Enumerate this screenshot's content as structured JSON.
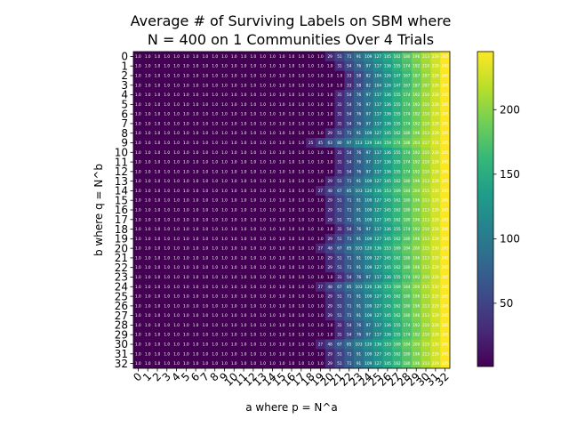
{
  "chart_data": {
    "type": "heatmap",
    "title_line1": "Average # of Surviving Labels on SBM where",
    "title_line2": "N = 400 on 1 Communities Over 4 Trials",
    "xlabel": "a where p = N^a",
    "ylabel": "b where q = N^b",
    "x_ticks": [
      "0",
      "1",
      "2",
      "3",
      "4",
      "5",
      "6",
      "7",
      "8",
      "9",
      "10",
      "11",
      "12",
      "13",
      "14",
      "15",
      "16",
      "17",
      "18",
      "19",
      "20",
      "21",
      "22",
      "23",
      "24",
      "25",
      "26",
      "27",
      "28",
      "29",
      "30",
      "31",
      "32"
    ],
    "y_ticks": [
      "0",
      "1",
      "2",
      "3",
      "4",
      "5",
      "6",
      "7",
      "8",
      "9",
      "10",
      "11",
      "12",
      "13",
      "14",
      "15",
      "16",
      "17",
      "18",
      "19",
      "20",
      "21",
      "22",
      "23",
      "24",
      "25",
      "26",
      "27",
      "28",
      "29",
      "30",
      "31",
      "32"
    ],
    "transition_col": [
      19,
      20,
      21,
      21,
      20,
      20,
      20,
      20,
      19,
      17,
      20,
      20,
      20,
      19,
      18,
      19,
      19,
      19,
      20,
      19,
      18,
      19,
      19,
      20,
      18,
      19,
      19,
      19,
      20,
      20,
      18,
      19,
      19
    ],
    "min_value": 1.0,
    "max_value": 245,
    "colorbar_ticks": [
      50,
      100,
      150,
      200
    ],
    "colormap": [
      "#440154",
      "#482878",
      "#3e4989",
      "#31688e",
      "#26828e",
      "#1f9e89",
      "#35b779",
      "#6ece58",
      "#b5de2b",
      "#fde725"
    ],
    "annotation_color": "#ffffff"
  }
}
